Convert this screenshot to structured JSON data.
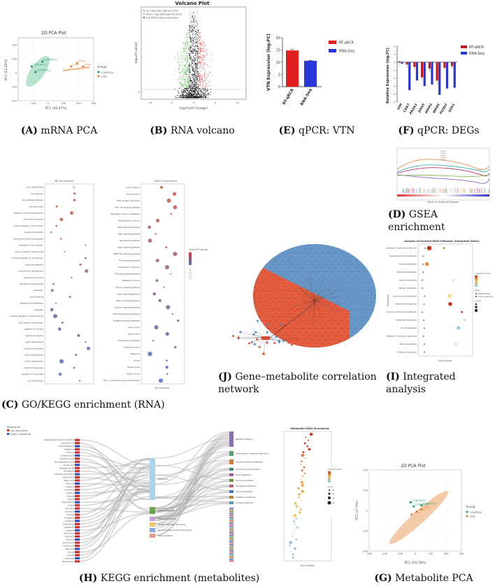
{
  "panels": {
    "A": {
      "caption_letter": "(A)",
      "caption_text": "mRNA PCA",
      "title": "2D PCA Plot",
      "xlabel": "PC1 (50.47%)",
      "ylabel": "PC2 (13.25%)",
      "legend_title": "Group",
      "groups": [
        {
          "name": "CONTROL",
          "color": "#2e9e6b"
        },
        {
          "name": "VTN",
          "color": "#e8833a"
        }
      ],
      "points": [
        {
          "label": "CONTROL1",
          "x": -40,
          "y": 80,
          "group": "CONTROL"
        },
        {
          "label": "CONTROL3",
          "x": -110,
          "y": 45,
          "group": "CONTROL"
        },
        {
          "label": "CONTROL2",
          "x": -85,
          "y": 5,
          "group": "CONTROL"
        },
        {
          "label": "VTN2",
          "x": 190,
          "y": 70,
          "group": "VTN"
        },
        {
          "label": "VTN1",
          "x": 150,
          "y": 45,
          "group": "VTN"
        },
        {
          "label": "VTN3",
          "x": 230,
          "y": 45,
          "group": "VTN"
        }
      ],
      "xticks": [
        "-100",
        "0",
        "100",
        "200",
        "300"
      ],
      "yticks": [
        "200",
        "100",
        "0",
        "-100",
        "-200"
      ]
    },
    "B": {
      "caption_letter": "(B)",
      "caption_text": "RNA volcano",
      "title": "Volcano Plot",
      "xlabel": "log₂(Fold Change)",
      "ylabel": "-log₁₀(P value)",
      "legend": [
        {
          "label": "up–regulated genes (212)",
          "color": "#e05a4f"
        },
        {
          "label": "down–regulated genes (231)",
          "color": "#5bbf4d"
        },
        {
          "label": "not differential expressed",
          "color": "#111111"
        }
      ],
      "xticks": [
        "-10",
        "-5",
        "0",
        "5",
        "10"
      ],
      "yticks": [
        "0"
      ]
    },
    "E": {
      "caption_letter": "(E)",
      "caption_text": "qPCR: VTN",
      "ylabel": "VTN Expression (log₂FC)",
      "legend": [
        {
          "label": "RT-qRCR",
          "color": "#e01e1e"
        },
        {
          "label": "RNA-Seq",
          "color": "#2a35d6"
        }
      ],
      "yticks": [
        "0",
        "5",
        "10",
        "15",
        "20"
      ]
    },
    "F": {
      "caption_letter": "(F)",
      "caption_text": "qPCR: DEGs",
      "ylabel": "Relative Expression (log₂FC)",
      "legend": [
        {
          "label": "RT-qRCR",
          "color": "#c4161c"
        },
        {
          "label": "RNA-Seq",
          "color": "#2a35d6"
        }
      ],
      "yticks": [
        "2",
        "1",
        "0",
        "-1",
        "-2",
        "-3",
        "-4",
        "-5"
      ]
    },
    "D": {
      "caption_letter": "(D)",
      "caption_text": "GSEA enrichment",
      "xlabel": "Rank in Ordered Dataset"
    },
    "C": {
      "caption_letter": "(C)",
      "caption_text": "GO/KEGG enrichment (RNA)",
      "left_title": "BP Enrichment",
      "right_title": "KEGG Enrichment",
      "legend_title": "-log10(P value)",
      "xlabel": "Enrichment",
      "left_terms": [
        "axon development",
        "axonogenesis",
        "cell–substrate adhesion",
        "cell chemotaxis",
        "regulation of cell morphogenesis",
        "cell junction assembly",
        "positive regulation of locomotion",
        "synapse organization",
        "extracellular matrix organization",
        "regulation of cell migration",
        "neuron projection development",
        "positive regulation of cell adhesion",
        "leukocyte migration",
        "muscle tissue development",
        "response to wounding",
        "regulation of angiogenesis",
        "ossification",
        "wound healing",
        "epithelial cell proliferation",
        "cell growth",
        "positive regulation of kinase activity",
        "actin filament organization",
        "regulation of cell size",
        "response to hypoxia",
        "gland development",
        "cell fate commitment",
        "tube morphogenesis",
        "kidney development",
        "heart morphogenesis",
        "regulation of cell growth",
        "cell–cell adhesion"
      ],
      "right_terms": [
        "Axon guidance",
        "Focal adhesion",
        "ECM–receptor interaction",
        "PI3K–Akt signaling pathway",
        "Regulation of actin cytoskeleton",
        "Proteoglycans in cancer",
        "MAPK signaling pathway",
        "Rap1 signaling pathway",
        "Ras signaling pathway",
        "Hippo signaling pathway",
        "cGMP–PKG signaling pathway",
        "Wnt signaling pathway",
        "Cell adhesion molecules",
        "TGF–beta signaling pathway",
        "Pathways in cancer",
        "Calcium signaling pathway",
        "Apelin signaling pathway",
        "Relaxin signaling pathway",
        "Oxytocin signaling pathway",
        "AGE–RAGE signaling pathway",
        "Hedgehog signaling pathway",
        "Gap junction",
        "Tight junction",
        "ErbB signaling pathway",
        "Adherens junction",
        "Melanoma",
        "Glioma",
        "Breast cancer",
        "Gastric cancer",
        "Other – Glycosaminoglycan biosynthesis"
      ]
    },
    "J": {
      "caption_letter": "(J)",
      "caption_text": "Gene–metabolite correlation network"
    },
    "I": {
      "caption_letter": "(I)",
      "caption_text": "Integrated analysis",
      "title": "Analysis of Enriched KEGG Pathways (Integrated Omics)",
      "ylabel": "Pathways",
      "xlabel": "Rich factor",
      "terms": [
        "Biosynthesis of unsaturated fatty acids",
        "Glycerophospholipid metabolism",
        "Pyruvate metabolism",
        "Glutathione metabolism",
        "Arginine biosynthesis",
        "Nitrogen metabolism",
        "Arachidonic acid metabolism",
        "Beta–Alanine metabolism",
        "Glycine, serine and threonine metabolism",
        "Sphingolipid metabolism",
        "Purine metabolism",
        "Regulation of lipolysis in adipocytes",
        "Steroid biosynthesis",
        "Cholesterol metabolism"
      ],
      "legend_title": "-log10(P value)",
      "type_title": "Type",
      "type_items": [
        "Metabolites",
        "Transcriptome"
      ],
      "count_title": "Count"
    },
    "H": {
      "caption_letter": "(H)",
      "caption_text": "KEGG enrichment (metabolites)",
      "legend_title": "Regulation",
      "legend": [
        {
          "label": "Up–regulated",
          "color": "#d72b2b"
        },
        {
          "label": "Down–regulated",
          "color": "#2a4fc9"
        }
      ],
      "dot_title": "Metabolite KEGG Enrichment",
      "dot_xlabel": "Rich Factor",
      "sig_title": "-log10(P value)",
      "count_title": "Count",
      "count_items": [
        "10",
        "20",
        "30",
        "40"
      ],
      "metabolites": [
        "Phosphatidylcholine (P–16:0/18:1)",
        "Leukotriene D4",
        "PC(18:1(9Z)/20:4)",
        "Glutathione",
        "Uric acid",
        "L–Glutamic acid",
        "Arachidonic acid",
        "Docosahexaenoic acid",
        "Linoleic acid",
        "Prostaglandin E2",
        "Sphingosine",
        "Ceramide (d18:1/16:0)",
        "Palmitic acid",
        "Stearic acid",
        "Oleic acid",
        "L–Arginine",
        "L–Ornithine",
        "Citrulline",
        "Creatine",
        "Taurine",
        "Hypoxanthine",
        "Inosine",
        "Adenosine",
        "Guanosine",
        "Xanthine",
        "Cholesterol",
        "Lanosterol",
        "Desmosterol",
        "Lathosterol",
        "Squalene",
        "Pyruvic acid",
        "Lactic acid",
        "Citric acid",
        "Succinic acid",
        "Fumaric acid",
        "Malic acid",
        "Glycine",
        "L–Serine",
        "L–Threonine",
        "Beta–Alanine"
      ],
      "middle_nodes": [
        "Metabolism",
        "Cellular Processes",
        "Organismal Systems",
        "Genetic Information Processing",
        "Environmental Information Processing",
        "Human Diseases"
      ],
      "right_nodes": [
        "Metabolic pathways",
        "Biosynthesis of unsaturated fatty acids",
        "Glycerophospholipid metabolism",
        "Arachidonic acid metabolism",
        "Purine metabolism",
        "Arginine biosynthesis",
        "Sphingolipid metabolism",
        "Steroid biosynthesis",
        "Glutathione metabolism",
        "Pyruvate metabolism"
      ]
    },
    "G": {
      "caption_letter": "(G)",
      "caption_text": "Metabolite PCA",
      "title": "2D PCA Plot",
      "xlabel": "PC1 (55.78%)",
      "ylabel": "PC2 (17.9%)",
      "legend_title": "Group",
      "groups": [
        {
          "name": "CONTROL",
          "color": "#2e9e6b"
        },
        {
          "name": "VTN",
          "color": "#e8833a"
        }
      ],
      "points": [
        {
          "label": "CONTROL2",
          "x": -30,
          "y": 40,
          "group": "CONTROL"
        },
        {
          "label": "CONTROL3",
          "x": 40,
          "y": 25,
          "group": "CONTROL"
        },
        {
          "label": "CONTROL1",
          "x": -10,
          "y": 20,
          "group": "CONTROL"
        },
        {
          "label": "VTN3",
          "x": 40,
          "y": 5,
          "group": "VTN"
        },
        {
          "label": "VTN2",
          "x": 10,
          "y": -5,
          "group": "VTN"
        },
        {
          "label": "VTN1",
          "x": -25,
          "y": -20,
          "group": "VTN"
        }
      ],
      "xticks": [
        "-300",
        "-200",
        "-100",
        "0",
        "100",
        "200",
        "300"
      ],
      "yticks": [
        "200",
        "100",
        "0",
        "-100",
        "-200"
      ]
    }
  },
  "chart_data": [
    {
      "id": "E",
      "type": "bar",
      "categories": [
        "RT-qRCR",
        "RNA-Seq"
      ],
      "values": [
        14.8,
        10.6
      ],
      "errors": [
        0.5,
        0.15
      ],
      "ylabel": "VTN Expression (log₂FC)",
      "ylim": [
        0,
        20
      ]
    },
    {
      "id": "F",
      "type": "bar",
      "categories": [
        "VIM",
        "COX7",
        "PRDX1",
        "DDX5",
        "MMP2",
        "WARS",
        "PLOD2",
        "SOX1"
      ],
      "series": [
        {
          "name": "RT-qRCR",
          "values": [
            0.1,
            -0.3,
            -0.6,
            -1.9,
            -0.8,
            -2.3,
            -0.7,
            -0.5
          ]
        },
        {
          "name": "RNA-Seq",
          "values": [
            -0.2,
            -3.5,
            -2.3,
            -3.0,
            -2.8,
            -4.1,
            -3.3,
            -3.2
          ]
        }
      ],
      "ylabel": "Relative Expression (log₂FC)",
      "ylim": [
        -5,
        2
      ]
    },
    {
      "id": "A",
      "type": "scatter",
      "title": "2D PCA Plot",
      "xlabel": "PC1 (50.47%)",
      "ylabel": "PC2 (13.25%)",
      "xlim": [
        -200,
        300
      ],
      "ylim": [
        -200,
        250
      ]
    },
    {
      "id": "G",
      "type": "scatter",
      "title": "2D PCA Plot",
      "xlabel": "PC1 (55.78%)",
      "ylabel": "PC2 (17.9%)",
      "xlim": [
        -300,
        300
      ],
      "ylim": [
        -200,
        200
      ]
    }
  ]
}
